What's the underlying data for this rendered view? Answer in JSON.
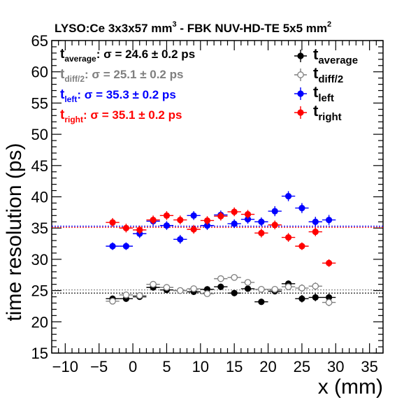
{
  "chart_data": {
    "type": "scatter",
    "title_main": "LYSO:Ce 3x3x57 mm",
    "title_sup1": "3",
    "title_mid": " - FBK NUV-HD-TE 5x5 mm",
    "title_sup2": "2",
    "xlabel": "x (mm)",
    "ylabel": "time resolution (ps)",
    "xlim": [
      -12,
      37
    ],
    "ylim": [
      15,
      65
    ],
    "xticks": [
      -10,
      -5,
      0,
      5,
      10,
      15,
      20,
      25,
      30,
      35
    ],
    "yticks": [
      15,
      20,
      25,
      30,
      35,
      40,
      45,
      50,
      55,
      60,
      65
    ],
    "x_error": 1,
    "series": [
      {
        "key": "average",
        "name_base": "t",
        "name_sub": "average",
        "color": "#000000",
        "marker": "filled",
        "fit_value": 24.6,
        "fit_text": ": σ = 24.6 ± 0.2 ps",
        "x": [
          -3,
          -1,
          1,
          3,
          5,
          7,
          9,
          11,
          13,
          15,
          17,
          19,
          21,
          23,
          25,
          27,
          29
        ],
        "y": [
          23.7,
          23.7,
          24.0,
          25.5,
          25.1,
          25.0,
          24.8,
          25.2,
          25.6,
          24.6,
          25.3,
          23.2,
          24.9,
          26.1,
          23.7,
          23.9,
          23.9
        ],
        "err": [
          0.5,
          0.5,
          0.5,
          0.5,
          0.5,
          0.4,
          0.5,
          0.5,
          0.5,
          0.5,
          0.5,
          0.5,
          0.5,
          0.5,
          0.6,
          0.6,
          0.6
        ]
      },
      {
        "key": "diff2",
        "name_base": "t",
        "name_sub": "diff/2",
        "color": "#7f7f7f",
        "marker": "open",
        "fit_value": 25.1,
        "fit_text": ": σ = 25.1 ± 0.2 ps",
        "x": [
          -3,
          -1,
          1,
          3,
          5,
          7,
          9,
          11,
          13,
          15,
          17,
          19,
          21,
          23,
          25,
          27,
          29
        ],
        "y": [
          23.3,
          24.3,
          24.2,
          26.0,
          25.5,
          25.0,
          25.3,
          24.5,
          26.9,
          27.1,
          26.3,
          25.2,
          25.2,
          25.6,
          25.4,
          25.7,
          23.1
        ],
        "err": [
          0.5,
          0.5,
          0.5,
          0.5,
          0.5,
          0.4,
          0.5,
          0.5,
          0.5,
          0.5,
          0.5,
          0.5,
          0.5,
          0.5,
          0.6,
          0.6,
          0.6
        ]
      },
      {
        "key": "left",
        "name_base": "t",
        "name_sub": "left",
        "color": "#0000ff",
        "marker": "filled",
        "fit_value": 35.3,
        "fit_text": ": σ = 35.3 ± 0.2 ps",
        "x": [
          -3,
          -1,
          1,
          3,
          5,
          7,
          9,
          11,
          13,
          15,
          17,
          19,
          21,
          23,
          25,
          27,
          29
        ],
        "y": [
          32.1,
          32.1,
          34.1,
          36.1,
          35.4,
          33.2,
          37.0,
          35.4,
          37.1,
          35.7,
          36.4,
          36.0,
          37.7,
          40.1,
          38.2,
          36.0,
          36.3
        ],
        "err": [
          0.6,
          0.6,
          0.7,
          0.7,
          0.7,
          0.7,
          0.7,
          0.7,
          0.7,
          0.7,
          0.7,
          0.7,
          0.8,
          0.8,
          0.8,
          0.8,
          0.8
        ]
      },
      {
        "key": "right",
        "name_base": "t",
        "name_sub": "right",
        "color": "#ff0000",
        "marker": "filled",
        "fit_value": 35.1,
        "fit_text": ": σ = 35.1 ± 0.2 ps",
        "x": [
          -3,
          -1,
          1,
          3,
          5,
          7,
          9,
          11,
          13,
          15,
          17,
          19,
          21,
          23,
          25,
          27,
          29
        ],
        "y": [
          35.9,
          35.0,
          34.7,
          36.3,
          37.0,
          36.3,
          34.8,
          36.2,
          36.9,
          37.6,
          37.2,
          34.2,
          35.5,
          33.5,
          32.1,
          34.4,
          29.4
        ],
        "err": [
          0.7,
          0.7,
          0.7,
          0.7,
          0.7,
          0.7,
          0.7,
          0.7,
          0.7,
          0.7,
          0.7,
          0.7,
          0.7,
          0.7,
          0.6,
          0.7,
          0.6
        ]
      }
    ]
  }
}
